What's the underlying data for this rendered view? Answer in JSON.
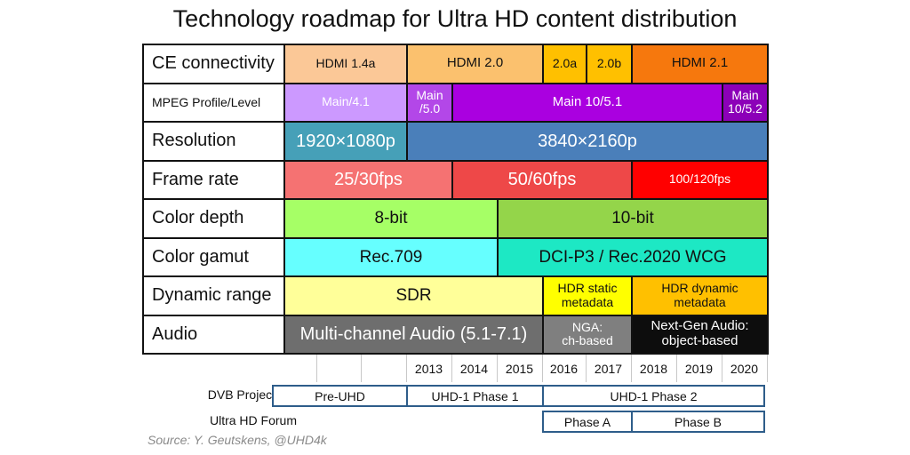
{
  "title": "Technology roadmap for Ultra HD content distribution",
  "years": [
    "2013",
    "2014",
    "2015",
    "2016",
    "2017",
    "2018",
    "2019",
    "2020"
  ],
  "rows": [
    {
      "label": "CE connectivity",
      "cells": [
        {
          "text": "HDMI 1.4a",
          "color": "#fbc897",
          "text_color": "#111111"
        },
        {
          "text": "HDMI 2.0",
          "color": "#fbc16e",
          "text_color": "#111111"
        },
        {
          "text": "2.0a",
          "color": "#ffc000",
          "text_color": "#111111"
        },
        {
          "text": "2.0b",
          "color": "#ffc000",
          "text_color": "#111111"
        },
        {
          "text": "HDMI 2.1",
          "color": "#f6780d",
          "text_color": "#111111"
        }
      ]
    },
    {
      "label": "MPEG Profile/Level",
      "cells": [
        {
          "text": "Main/4.1",
          "color": "#cc99ff",
          "text_color": "#ffffff"
        },
        {
          "text": "Main\n/5.0",
          "color": "#b347e8",
          "text_color": "#ffffff"
        },
        {
          "text": "Main 10/5.1",
          "color": "#aa00e0",
          "text_color": "#ffffff"
        },
        {
          "text": "Main 10/5.2",
          "color": "#8c00b8",
          "text_color": "#ffffff"
        }
      ]
    },
    {
      "label": "Resolution",
      "cells": [
        {
          "text": "1920×1080p",
          "color": "#46a0b8",
          "text_color": "#ffffff"
        },
        {
          "text": "3840×2160p",
          "color": "#4a7fba",
          "text_color": "#ffffff"
        }
      ]
    },
    {
      "label": "Frame rate",
      "cells": [
        {
          "text": "25/30fps",
          "color": "#f57272",
          "text_color": "#ffffff"
        },
        {
          "text": "50/60fps",
          "color": "#ee4848",
          "text_color": "#ffffff"
        },
        {
          "text": "100/120fps",
          "color": "#ff0000",
          "text_color": "#ffffff"
        }
      ]
    },
    {
      "label": "Color depth",
      "cells": [
        {
          "text": "8-bit",
          "color": "#a6ff66",
          "text_color": "#111111"
        },
        {
          "text": "10-bit",
          "color": "#94d54a",
          "text_color": "#111111"
        }
      ]
    },
    {
      "label": "Color gamut",
      "cells": [
        {
          "text": "Rec.709",
          "color": "#66ffff",
          "text_color": "#111111"
        },
        {
          "text": "DCI-P3 / Rec.2020 WCG",
          "color": "#1de8c4",
          "text_color": "#111111"
        }
      ]
    },
    {
      "label": "Dynamic range",
      "cells": [
        {
          "text": "SDR",
          "color": "#ffff99",
          "text_color": "#111111"
        },
        {
          "text": "HDR static\nmetadata",
          "color": "#ffff00",
          "text_color": "#111111"
        },
        {
          "text": "HDR dynamic\nmetadata",
          "color": "#ffc000",
          "text_color": "#111111"
        }
      ]
    },
    {
      "label": "Audio",
      "cells": [
        {
          "text": "Multi-channel Audio (5.1-7.1)",
          "color": "#6e6e6e",
          "text_color": "#ffffff"
        },
        {
          "text": "NGA:\nch-based",
          "color": "#7f7f7f",
          "text_color": "#ffffff"
        },
        {
          "text": "Next-Gen Audio:\nobject-based",
          "color": "#0d0d0d",
          "text_color": "#ffffff"
        }
      ]
    }
  ],
  "projects": [
    {
      "label": "DVB Project",
      "phases": [
        "Pre-UHD",
        "UHD-1 Phase 1",
        "UHD-1 Phase 2"
      ]
    },
    {
      "label": "Ultra HD Forum",
      "phases": [
        "Phase A",
        "Phase B"
      ]
    }
  ],
  "source": "Source: Y. Geutskens, @UHD4k"
}
